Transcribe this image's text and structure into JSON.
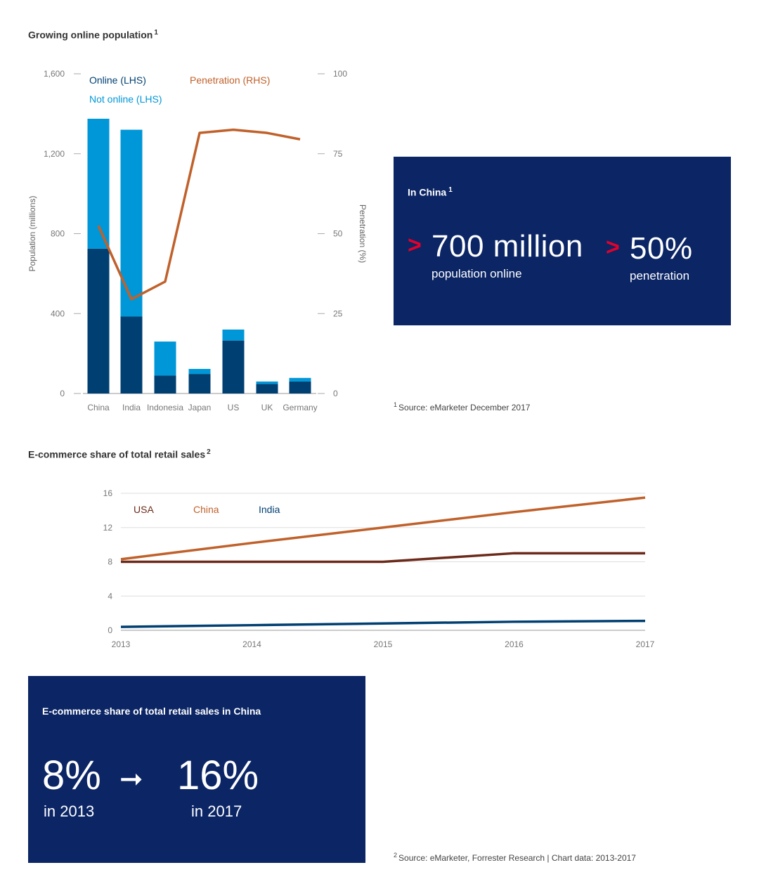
{
  "chart1_title": "Growing online population",
  "chart1_footnote": "1",
  "china_panel": {
    "title": "In China",
    "footnote": "1",
    "stat1_arrow": ">",
    "stat1_value": "700 million",
    "stat1_label": "population online",
    "stat2_arrow": ">",
    "stat2_value": "50%",
    "stat2_label": "penetration"
  },
  "source1": {
    "num": "1",
    "text": "Source: eMarketer December 2017"
  },
  "chart2_title": "E-commerce share of total retail sales",
  "chart2_footnote": "2",
  "ecom_panel": {
    "title": "E-commerce share of total retail sales in China",
    "from_value": "8%",
    "from_label": "in 2013",
    "arrow": "➞",
    "to_value": "16%",
    "to_label": "in 2017"
  },
  "source2": {
    "num": "2",
    "text": "Source: eMarketer, Forrester Research | Chart data: 2013-2017"
  },
  "chart_data": [
    {
      "type": "bar",
      "stacked": true,
      "categories": [
        "China",
        "India",
        "Indonesia",
        "Japan",
        "US",
        "UK",
        "Germany"
      ],
      "series": [
        {
          "name": "Online (LHS)",
          "color": "#003f72",
          "values": [
            725,
            385,
            90,
            98,
            265,
            48,
            60
          ]
        },
        {
          "name": "Not online (LHS)",
          "color": "#0097d8",
          "values": [
            650,
            935,
            170,
            25,
            55,
            12,
            18
          ]
        }
      ],
      "line_series": {
        "name": "Penetration (RHS)",
        "color": "#c0612b",
        "values": [
          52.5,
          29.5,
          35,
          81.5,
          82.5,
          81.5,
          79.5
        ]
      },
      "ylabel": "Population (millions)",
      "y2label": "Penetration (%)",
      "ylim": [
        0,
        1600
      ],
      "yticks": [
        "0",
        "400",
        "800",
        "1,200",
        "1,600"
      ],
      "y2lim": [
        0,
        100
      ],
      "y2ticks": [
        "0",
        "25",
        "50",
        "75",
        "100"
      ],
      "legend": "top"
    },
    {
      "type": "line",
      "x": [
        2013,
        2014,
        2015,
        2016,
        2017
      ],
      "xticks": [
        "2013",
        "2014",
        "2015",
        "2016",
        "2017"
      ],
      "series": [
        {
          "name": "USA",
          "color": "#6b2a1a",
          "values": [
            8,
            8,
            8,
            9,
            9
          ]
        },
        {
          "name": "China",
          "color": "#c0612b",
          "values": [
            8.3,
            10.2,
            12,
            13.8,
            15.5
          ]
        },
        {
          "name": "India",
          "color": "#003f72",
          "values": [
            0.4,
            0.6,
            0.8,
            1.0,
            1.1
          ]
        }
      ],
      "ylim": [
        0,
        16
      ],
      "yticks": [
        "0",
        "4",
        "8",
        "12",
        "16"
      ],
      "grid": true,
      "legend": "top-left"
    }
  ]
}
